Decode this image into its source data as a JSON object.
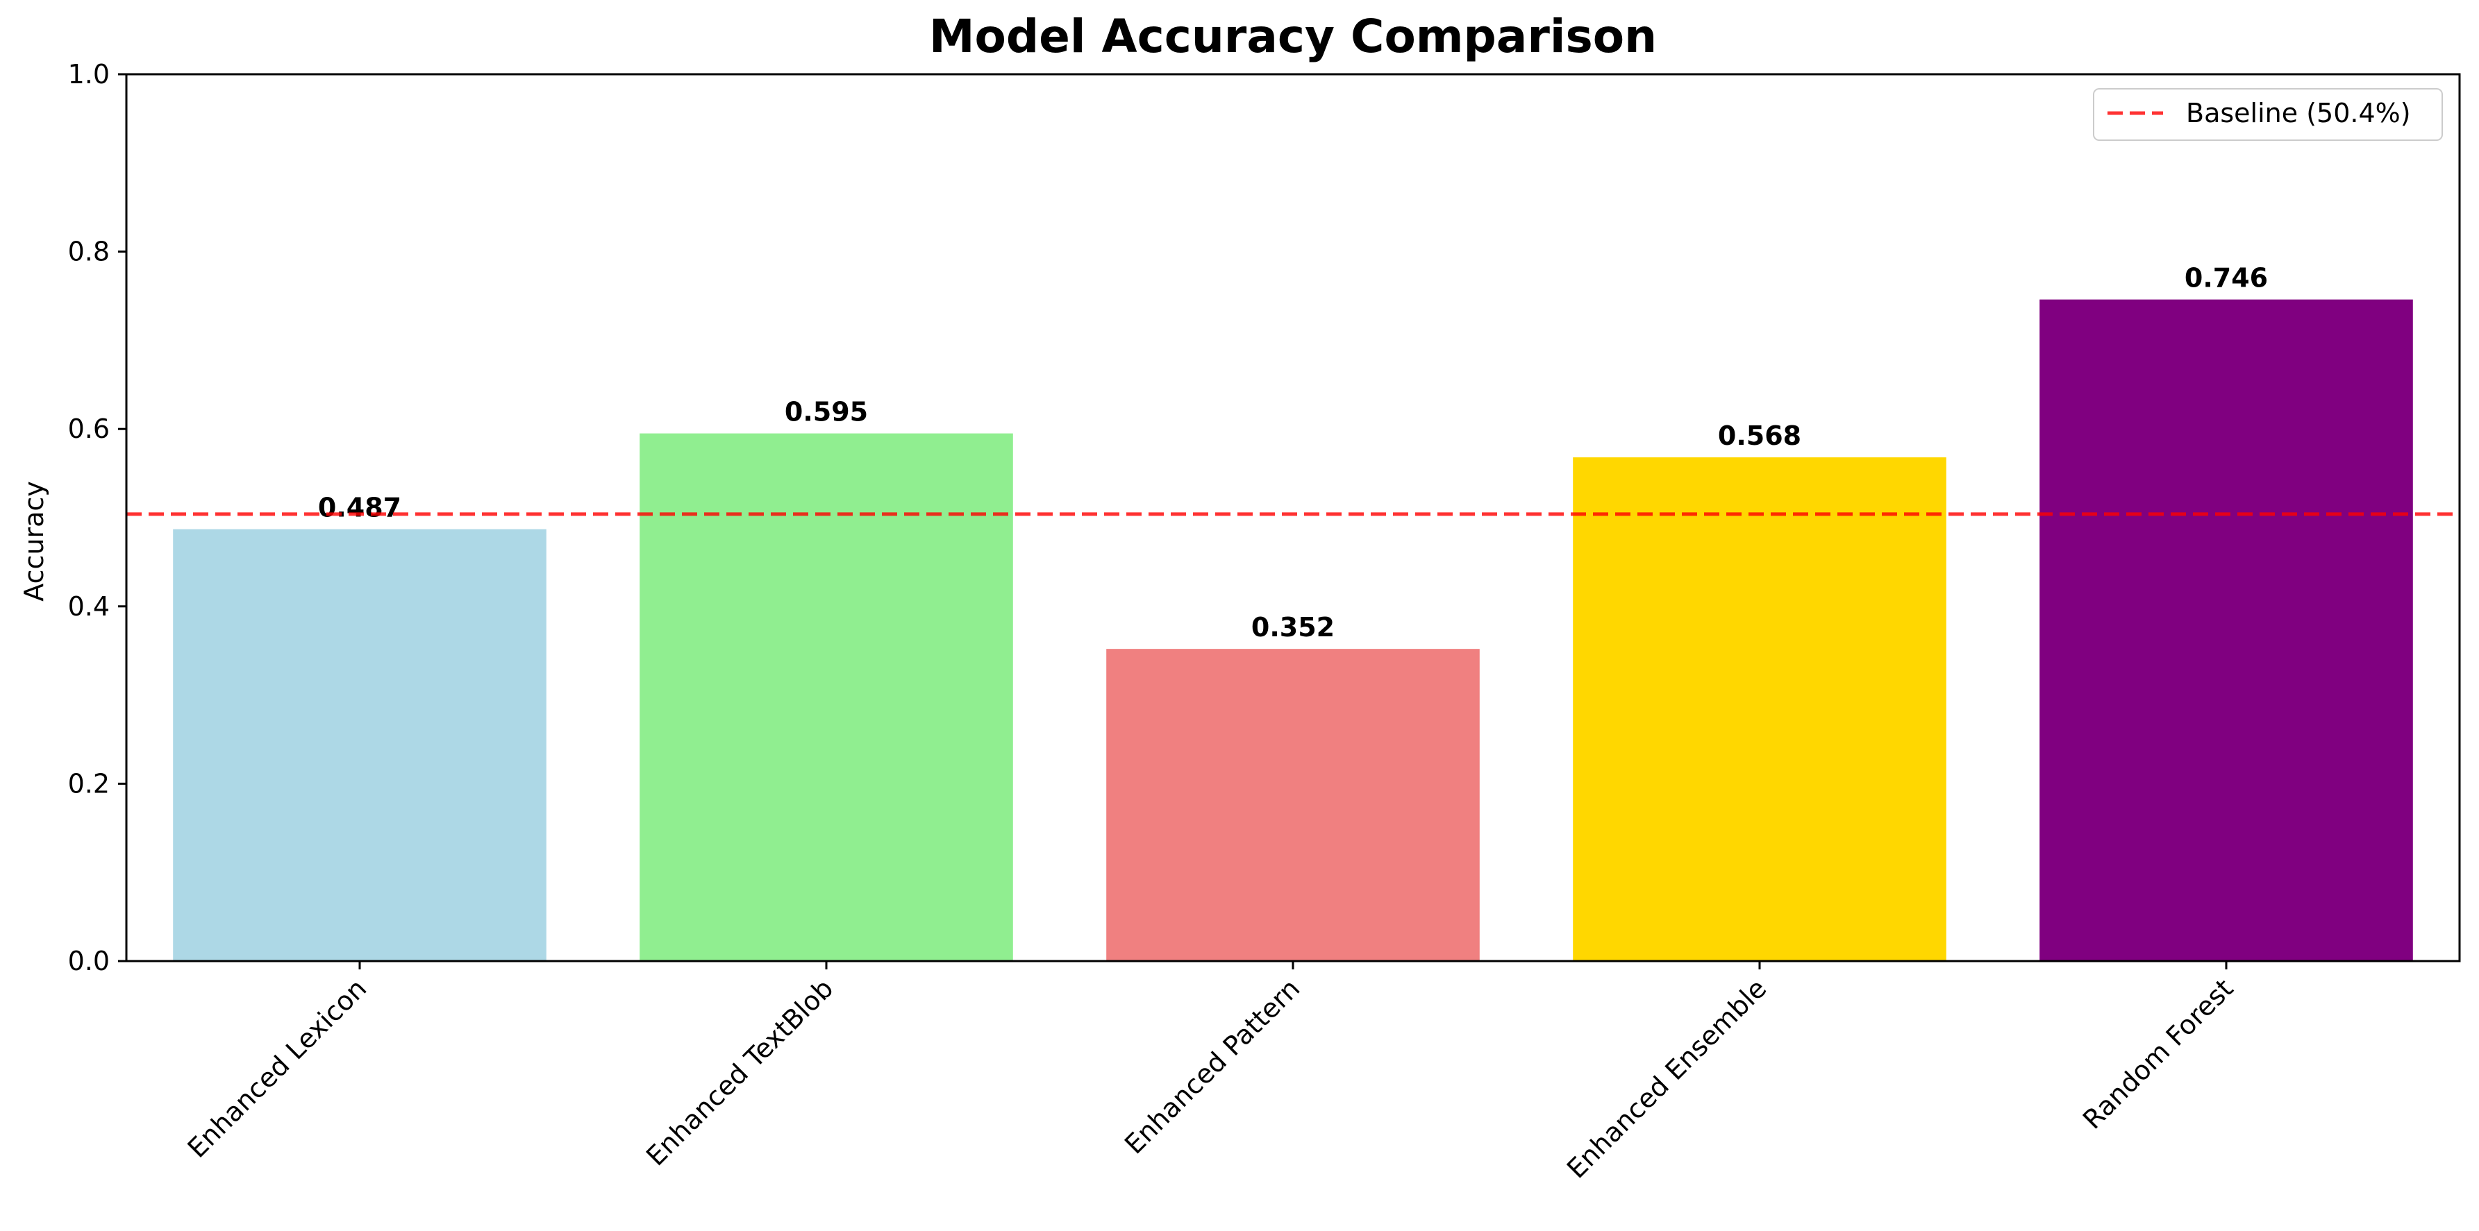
{
  "chart_data": {
    "type": "bar",
    "title": "Model Accuracy Comparison",
    "xlabel": "",
    "ylabel": "Accuracy",
    "ylim": [
      0,
      1.0
    ],
    "yticks": [
      "0.0",
      "0.2",
      "0.4",
      "0.6",
      "0.8",
      "1.0"
    ],
    "grid": false,
    "categories": [
      "Enhanced Lexicon",
      "Enhanced TextBlob",
      "Enhanced Pattern",
      "Enhanced Ensemble",
      "Random Forest"
    ],
    "values": [
      0.487,
      0.595,
      0.352,
      0.568,
      0.746
    ],
    "data_labels": [
      "0.487",
      "0.595",
      "0.352",
      "0.568",
      "0.746"
    ],
    "bar_colors": [
      "#add8e6",
      "#90ee90",
      "#f08080",
      "#ffd700",
      "#800080"
    ],
    "baseline": {
      "value": 0.504,
      "label": "Baseline (50.4%)",
      "color": "#ff0000",
      "style": "dashed"
    },
    "legend_position": "upper right"
  }
}
